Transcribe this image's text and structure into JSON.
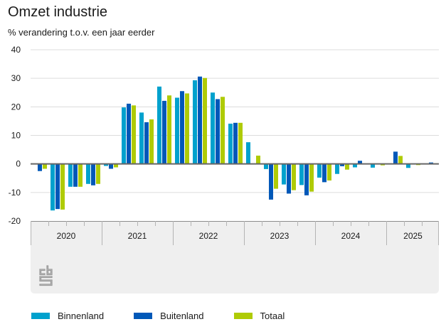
{
  "header": {
    "title": "Omzet industrie",
    "subtitle": "% verandering t.o.v. een jaar eerder"
  },
  "logo": {
    "icon": "cbs-logo-icon"
  },
  "chart_data": {
    "type": "bar",
    "title": "Omzet industrie",
    "subtitle": "% verandering t.o.v. een jaar eerder",
    "xlabel": "",
    "ylabel": "% verandering t.o.v. een jaar eerder",
    "ylim": [
      -20,
      40
    ],
    "yticks": [
      40,
      30,
      20,
      10,
      0,
      -10,
      -20
    ],
    "grid": true,
    "legend_position": "bottom",
    "years": [
      {
        "label": "2020",
        "quarters": 4
      },
      {
        "label": "2021",
        "quarters": 4
      },
      {
        "label": "2022",
        "quarters": 4
      },
      {
        "label": "2023",
        "quarters": 4
      },
      {
        "label": "2024",
        "quarters": 4
      },
      {
        "label": "2025",
        "quarters": 3
      }
    ],
    "categories": [
      "2020 Q1",
      "2020 Q2",
      "2020 Q3",
      "2020 Q4",
      "2021 Q1",
      "2021 Q2",
      "2021 Q3",
      "2021 Q4",
      "2022 Q1",
      "2022 Q2",
      "2022 Q3",
      "2022 Q4",
      "2023 Q1",
      "2023 Q2",
      "2023 Q3",
      "2023 Q4",
      "2024 Q1",
      "2024 Q2",
      "2024 Q3",
      "2024 Q4",
      "2025 Q1",
      "2025 Q2",
      "2025 Q3"
    ],
    "series": [
      {
        "name": "Binnenland",
        "color": "#00a1cd",
        "values": [
          -0.2,
          -16.3,
          -8.0,
          -7.0,
          -0.7,
          19.8,
          18.0,
          27.1,
          23.2,
          29.3,
          25.0,
          14.1,
          7.6,
          -1.8,
          -7.2,
          -7.4,
          -4.8,
          -3.5,
          -1.2,
          -1.3,
          0.0,
          -1.4,
          0.0
        ]
      },
      {
        "name": "Buitenland",
        "color": "#0058b8",
        "values": [
          -2.5,
          -15.8,
          -8.0,
          -7.5,
          -1.7,
          21.1,
          14.6,
          22.1,
          25.5,
          30.6,
          22.7,
          14.4,
          0.0,
          -12.5,
          -10.4,
          -11.0,
          -6.4,
          -0.8,
          1.1,
          0.0,
          4.3,
          0.0,
          0.5
        ]
      },
      {
        "name": "Totaal",
        "color": "#afcb05",
        "values": [
          -1.7,
          -16.0,
          -8.0,
          -7.0,
          -1.2,
          20.5,
          15.6,
          24.0,
          24.7,
          30.1,
          23.5,
          14.4,
          2.9,
          -8.7,
          -9.2,
          -9.7,
          -5.8,
          -2.0,
          0.0,
          -0.5,
          2.8,
          -0.4,
          0.2
        ]
      }
    ]
  }
}
